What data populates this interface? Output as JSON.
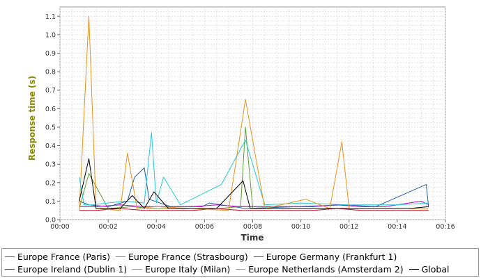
{
  "chart_data": {
    "type": "line",
    "xlabel": "Time",
    "ylabel": "Response time (s)",
    "xlim": [
      0,
      16
    ],
    "ylim": [
      0,
      1.15
    ],
    "x_ticks": [
      "00:00",
      "00:02",
      "00:04",
      "00:06",
      "00:08",
      "00:10",
      "00:12",
      "00:14",
      "00:16"
    ],
    "y_ticks": [
      "0.0",
      "0.1",
      "0.2",
      "0.3",
      "0.4",
      "0.5",
      "0.6",
      "0.7",
      "0.8",
      "0.9",
      "1.0",
      "1.1"
    ],
    "grid": true,
    "legend_position": "bottom",
    "series": [
      {
        "name": "Europe France (Paris)",
        "color": "#1f5fa8",
        "x": [
          0.8,
          1.2,
          2.0,
          2.8,
          3.1,
          3.5,
          3.7,
          4.6,
          5.9,
          6.2,
          7.7,
          9.8,
          11.8,
          13.1,
          15.2,
          15.3
        ],
        "y": [
          0.1,
          0.08,
          0.07,
          0.1,
          0.23,
          0.28,
          0.11,
          0.07,
          0.07,
          0.09,
          0.06,
          0.07,
          0.08,
          0.07,
          0.19,
          0.07
        ]
      },
      {
        "name": "Europe France (Strasbourg)",
        "color": "#5aa02c",
        "x": [
          0.8,
          1.2,
          2.0,
          3.0,
          3.8,
          5.0,
          6.6,
          7.5,
          7.7,
          8.0,
          9.5,
          11.0,
          12.5,
          14.0,
          15.3
        ],
        "y": [
          0.06,
          0.25,
          0.06,
          0.07,
          0.06,
          0.06,
          0.06,
          0.07,
          0.5,
          0.06,
          0.06,
          0.06,
          0.06,
          0.06,
          0.06
        ]
      },
      {
        "name": "Europe Germany (Frankfurt 1)",
        "color": "#c0102a",
        "x": [
          0.8,
          1.5,
          2.5,
          3.5,
          4.5,
          5.5,
          6.5,
          7.5,
          8.5,
          9.5,
          10.5,
          11.5,
          12.5,
          13.5,
          14.5,
          15.3
        ],
        "y": [
          0.05,
          0.05,
          0.06,
          0.05,
          0.05,
          0.05,
          0.06,
          0.05,
          0.05,
          0.05,
          0.05,
          0.06,
          0.05,
          0.05,
          0.05,
          0.05
        ]
      },
      {
        "name": "Europe Ireland (Dublin 1)",
        "color": "#b010c8",
        "x": [
          0.8,
          1.5,
          2.5,
          3.5,
          4.5,
          5.5,
          6.5,
          7.5,
          8.5,
          9.5,
          10.5,
          11.5,
          12.5,
          13.5,
          15.0,
          15.3
        ],
        "y": [
          0.07,
          0.07,
          0.08,
          0.07,
          0.07,
          0.07,
          0.08,
          0.07,
          0.07,
          0.07,
          0.07,
          0.08,
          0.07,
          0.07,
          0.1,
          0.08
        ]
      },
      {
        "name": "Europe Italy (Milan)",
        "color": "#22c8d8",
        "x": [
          0.8,
          1.0,
          1.3,
          2.0,
          2.7,
          3.5,
          3.8,
          4.0,
          4.3,
          5.0,
          6.7,
          7.7,
          8.5,
          10.0,
          12.0,
          14.0,
          15.3
        ],
        "y": [
          0.23,
          0.08,
          0.08,
          0.09,
          0.1,
          0.09,
          0.47,
          0.09,
          0.23,
          0.08,
          0.19,
          0.43,
          0.08,
          0.09,
          0.08,
          0.08,
          0.09
        ]
      },
      {
        "name": "Europe Netherlands (Amsterdam 2)",
        "color": "#e89218",
        "x": [
          0.8,
          1.2,
          1.5,
          2.5,
          2.8,
          3.2,
          4.0,
          5.5,
          7.0,
          7.7,
          8.5,
          10.2,
          11.2,
          11.7,
          12.0,
          13.5,
          15.3
        ],
        "y": [
          0.05,
          1.1,
          0.06,
          0.05,
          0.36,
          0.06,
          0.07,
          0.06,
          0.05,
          0.65,
          0.06,
          0.11,
          0.06,
          0.42,
          0.06,
          0.06,
          0.06
        ]
      },
      {
        "name": "Global",
        "color": "#000000",
        "x": [
          0.8,
          1.2,
          1.5,
          2.5,
          3.0,
          3.5,
          3.9,
          4.5,
          5.5,
          6.5,
          7.6,
          7.9,
          8.5,
          9.5,
          10.5,
          11.5,
          12.5,
          13.5,
          14.5,
          15.3
        ],
        "y": [
          0.1,
          0.33,
          0.06,
          0.06,
          0.13,
          0.06,
          0.15,
          0.06,
          0.06,
          0.06,
          0.21,
          0.06,
          0.06,
          0.06,
          0.06,
          0.06,
          0.06,
          0.06,
          0.06,
          0.07
        ]
      }
    ]
  },
  "style": {
    "ylabel_color": "#8b8b00",
    "grid_color": "#dcdcdc",
    "plot_background": "#ffffff"
  }
}
